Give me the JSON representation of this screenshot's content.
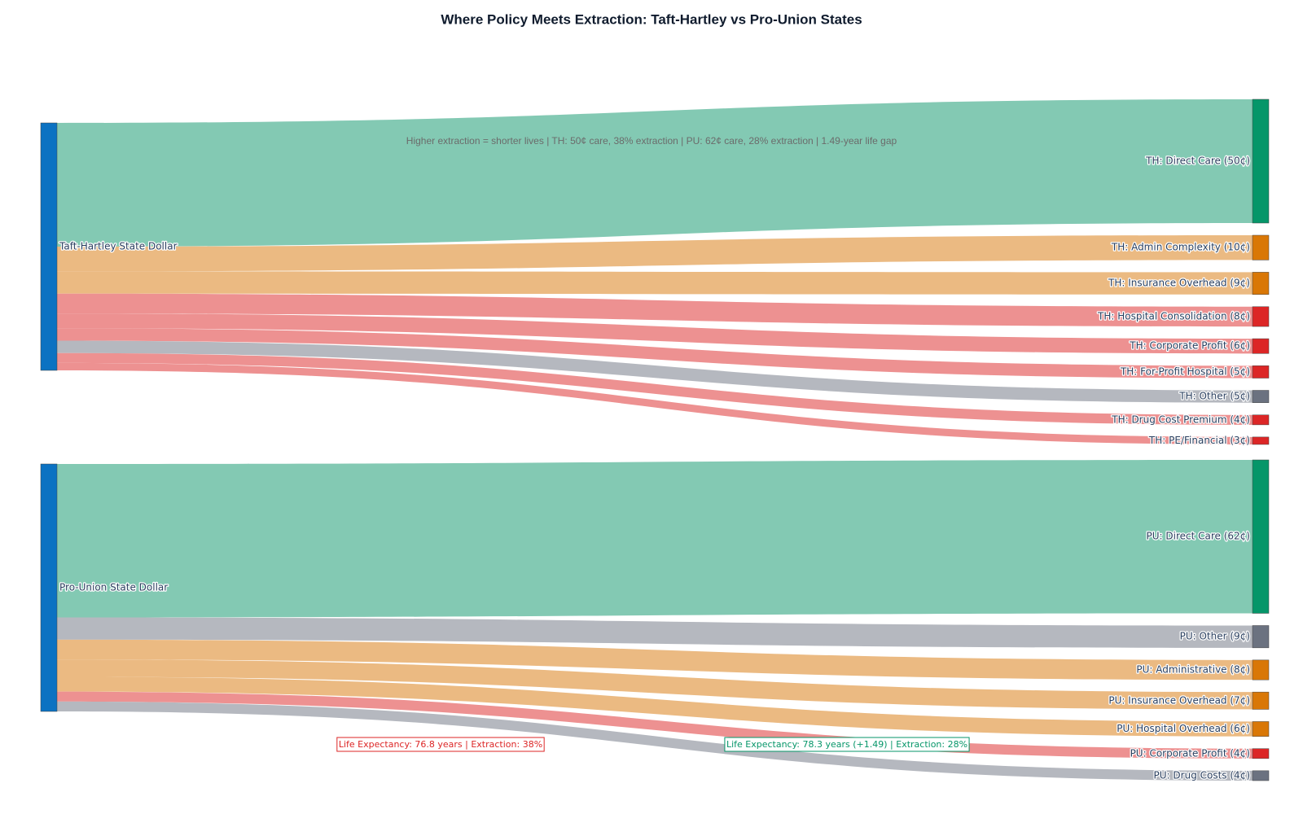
{
  "chart_data": {
    "type": "sankey",
    "title": "Where Policy Meets Extraction: Taft-Hartley vs Pro-Union States",
    "nodes": [
      {
        "label": "Taft-Hartley State Dollar",
        "color": "#0b72c2"
      },
      {
        "label": "Pro-Union State Dollar",
        "color": "#0b72c2"
      },
      {
        "label": "TH: Direct Care (50¢)",
        "color": "#069669"
      },
      {
        "label": "TH: Admin Complexity (10¢)",
        "color": "#d97706"
      },
      {
        "label": "TH: Insurance Overhead (9¢)",
        "color": "#d97706"
      },
      {
        "label": "TH: Hospital Consolidation (8¢)",
        "color": "#dc2626"
      },
      {
        "label": "TH: Corporate Profit (6¢)",
        "color": "#dc2626"
      },
      {
        "label": "TH: For-Profit Hospital (5¢)",
        "color": "#dc2626"
      },
      {
        "label": "TH: Other (5¢)",
        "color": "#6b7280"
      },
      {
        "label": "TH: Drug Cost Premium (4¢)",
        "color": "#dc2626"
      },
      {
        "label": "TH: PE/Financial (3¢)",
        "color": "#dc2626"
      },
      {
        "label": "PU: Direct Care (62¢)",
        "color": "#069669"
      },
      {
        "label": "PU: Other (9¢)",
        "color": "#6b7280"
      },
      {
        "label": "PU: Administrative (8¢)",
        "color": "#d97706"
      },
      {
        "label": "PU: Insurance Overhead (7¢)",
        "color": "#d97706"
      },
      {
        "label": "PU: Hospital Overhead (6¢)",
        "color": "#d97706"
      },
      {
        "label": "PU: Corporate Profit (4¢)",
        "color": "#dc2626"
      },
      {
        "label": "PU: Drug Costs (4¢)",
        "color": "#6b7280"
      }
    ],
    "links": [
      {
        "source": 0,
        "target": 2,
        "value": 50,
        "color": "#83c9b3"
      },
      {
        "source": 0,
        "target": 3,
        "value": 10,
        "color": "#ebba82"
      },
      {
        "source": 0,
        "target": 4,
        "value": 9,
        "color": "#ebba82"
      },
      {
        "source": 0,
        "target": 5,
        "value": 8,
        "color": "#ed9191"
      },
      {
        "source": 0,
        "target": 6,
        "value": 6,
        "color": "#ed9191"
      },
      {
        "source": 0,
        "target": 7,
        "value": 5,
        "color": "#ed9191"
      },
      {
        "source": 0,
        "target": 8,
        "value": 5,
        "color": "#b5b8bf"
      },
      {
        "source": 0,
        "target": 9,
        "value": 4,
        "color": "#ed9191"
      },
      {
        "source": 0,
        "target": 10,
        "value": 3,
        "color": "#ed9191"
      },
      {
        "source": 1,
        "target": 11,
        "value": 62,
        "color": "#83c9b3"
      },
      {
        "source": 1,
        "target": 12,
        "value": 9,
        "color": "#b5b8bf"
      },
      {
        "source": 1,
        "target": 13,
        "value": 8,
        "color": "#ebba82"
      },
      {
        "source": 1,
        "target": 14,
        "value": 7,
        "color": "#ebba82"
      },
      {
        "source": 1,
        "target": 15,
        "value": 6,
        "color": "#ebba82"
      },
      {
        "source": 1,
        "target": 16,
        "value": 4,
        "color": "#ed9191"
      },
      {
        "source": 1,
        "target": 17,
        "value": 4,
        "color": "#b5b8bf"
      }
    ],
    "annotations": [
      {
        "text": "Higher extraction = shorter lives | TH: 50¢ care, 38% extraction | PU: 62¢ care, 28% extraction | 1.49-year life gap",
        "color": "#6b6b6b"
      },
      {
        "text": "Life Expectancy: 76.8 years | Extraction: 38%",
        "color": "#dc2626"
      },
      {
        "text": "Life Expectancy: 78.3 years (+1.49) | Extraction: 28%",
        "color": "#069669"
      }
    ]
  }
}
